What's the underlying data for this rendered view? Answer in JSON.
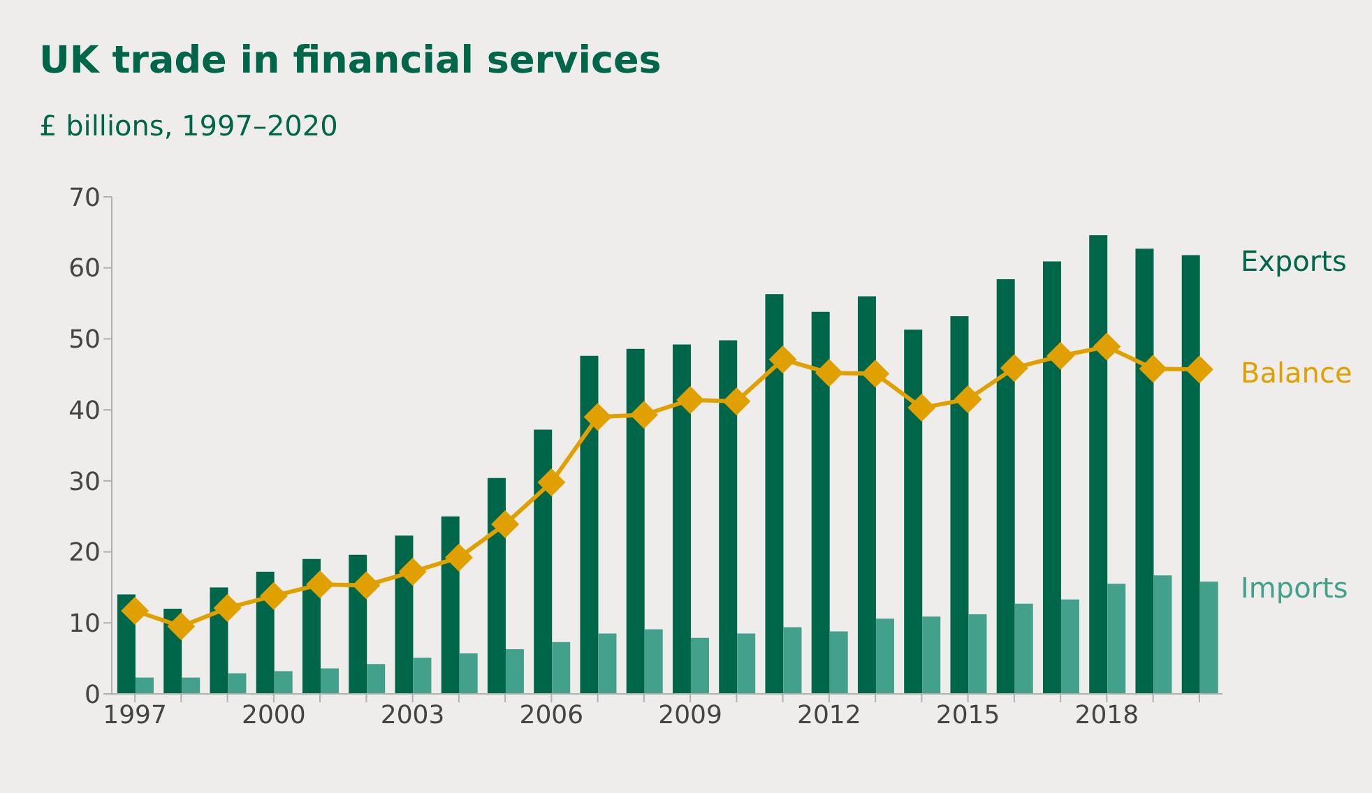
{
  "chart_data": {
    "type": "bar",
    "title": "UK trade in financial services",
    "subtitle": "£ billions, 1997–2020",
    "categories": [
      "1997",
      null,
      null,
      "2000",
      null,
      null,
      "2003",
      null,
      null,
      "2006",
      null,
      null,
      "2009",
      null,
      null,
      "2012",
      null,
      null,
      "2015",
      null,
      null,
      "2018",
      null,
      null
    ],
    "series": [
      {
        "name": "Exports",
        "color": "#00664a",
        "values": [
          14,
          12,
          15,
          17.2,
          19,
          19.6,
          22.3,
          25,
          30.4,
          37.2,
          47.6,
          48.6,
          49.2,
          49.8,
          56.3,
          53.8,
          56,
          51.3,
          53.2,
          58.4,
          60.9,
          64.6,
          62.7,
          61.8
        ]
      },
      {
        "name": "Imports",
        "color": "#43a08a",
        "values": [
          2.3,
          2.3,
          2.9,
          3.2,
          3.6,
          4.2,
          5.1,
          5.7,
          6.3,
          7.3,
          8.5,
          9.1,
          7.9,
          8.5,
          9.4,
          8.8,
          10.6,
          10.9,
          11.2,
          12.7,
          13.3,
          15.5,
          16.7,
          15.8
        ]
      },
      {
        "name": "Balance",
        "type": "line",
        "color": "#e0a000",
        "values": [
          11.7,
          9.5,
          12.1,
          13.8,
          15.4,
          15.3,
          17.2,
          19.2,
          23.9,
          29.8,
          39,
          39.3,
          41.4,
          41.2,
          47.1,
          45.2,
          45.1,
          40.3,
          41.5,
          45.9,
          47.6,
          48.9,
          45.8,
          45.7
        ]
      }
    ],
    "ylim": [
      0,
      70
    ],
    "yticks": [
      0,
      10,
      20,
      30,
      40,
      50,
      60,
      70
    ],
    "grid": false,
    "legend": "right",
    "marker": "diamond",
    "line_style": "solid"
  }
}
